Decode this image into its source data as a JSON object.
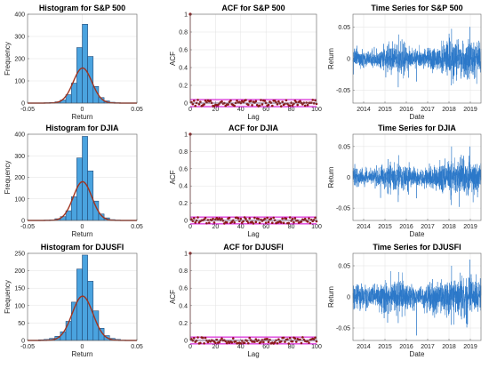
{
  "chart_data": [
    {
      "type": "bar",
      "title": "Histogram for S&P 500",
      "xlabel": "Return",
      "ylabel": "Frequency",
      "xlim": [
        -0.05,
        0.05
      ],
      "ylim": [
        0,
        400
      ],
      "xticks": [
        "-0.05",
        "0",
        "0.05"
      ],
      "yticks": [
        "0",
        "100",
        "200",
        "300",
        "400"
      ],
      "bin_edges": [
        -0.04,
        -0.035,
        -0.03,
        -0.025,
        -0.02,
        -0.015,
        -0.01,
        -0.005,
        0,
        0.005,
        0.01,
        0.015,
        0.02,
        0.025,
        0.03,
        0.035,
        0.04
      ],
      "counts": [
        1,
        2,
        3,
        6,
        14,
        38,
        90,
        250,
        355,
        210,
        75,
        25,
        10,
        4,
        2,
        1
      ],
      "fit": {
        "type": "normal",
        "mean": 0.0003,
        "sd": 0.0085
      }
    },
    {
      "type": "scatter",
      "title": "ACF for S&P 500",
      "xlabel": "Lag",
      "ylabel": "ACF",
      "xlim": [
        0,
        100
      ],
      "ylim": [
        0,
        1
      ],
      "xticks": [
        "0",
        "20",
        "40",
        "60",
        "80",
        "100"
      ],
      "yticks": [
        "0",
        "0.2",
        "0.4",
        "0.6",
        "0.8",
        "1"
      ],
      "band": 0.04,
      "lag0": 1
    },
    {
      "type": "line",
      "title": "Time Series for S&P 500",
      "xlabel": "Date",
      "ylabel": "Return",
      "xlim": [
        2013.5,
        2019.5
      ],
      "ylim": [
        -0.07,
        0.07
      ],
      "xticks": [
        "2014",
        "2015",
        "2016",
        "2017",
        "2018",
        "2019"
      ],
      "yticks": [
        "-0.05",
        "0",
        "0.05"
      ],
      "volatility_profile": [
        0.008,
        0.006,
        0.01,
        0.012,
        0.006,
        0.009,
        0.014,
        0.016,
        0.012
      ],
      "spikes": [
        [
          2015.62,
          -0.045
        ],
        [
          2015.64,
          0.038
        ],
        [
          2016.1,
          -0.03
        ],
        [
          2016.48,
          -0.036
        ],
        [
          2018.1,
          -0.042
        ],
        [
          2018.12,
          0.047
        ],
        [
          2018.9,
          -0.03
        ],
        [
          2018.98,
          0.05
        ]
      ]
    },
    {
      "type": "bar",
      "title": "Histogram for DJIA",
      "xlabel": "Return",
      "ylabel": "Frequency",
      "xlim": [
        -0.05,
        0.05
      ],
      "ylim": [
        0,
        400
      ],
      "xticks": [
        "-0.05",
        "0",
        "0.05"
      ],
      "yticks": [
        "0",
        "100",
        "200",
        "300",
        "400"
      ],
      "bin_edges": [
        -0.04,
        -0.035,
        -0.03,
        -0.025,
        -0.02,
        -0.015,
        -0.01,
        -0.005,
        0,
        0.005,
        0.01,
        0.015,
        0.02,
        0.025,
        0.03,
        0.035,
        0.04
      ],
      "counts": [
        1,
        2,
        3,
        8,
        18,
        45,
        110,
        290,
        390,
        230,
        90,
        30,
        12,
        4,
        2,
        1
      ],
      "fit": {
        "type": "normal",
        "mean": 0.0003,
        "sd": 0.0085
      }
    },
    {
      "type": "scatter",
      "title": "ACF for DJIA",
      "xlabel": "Lag",
      "ylabel": "ACF",
      "xlim": [
        0,
        100
      ],
      "ylim": [
        0,
        1
      ],
      "xticks": [
        "0",
        "20",
        "40",
        "60",
        "80",
        "100"
      ],
      "yticks": [
        "0",
        "0.2",
        "0.4",
        "0.6",
        "0.8",
        "1"
      ],
      "band": 0.04,
      "lag0": 1
    },
    {
      "type": "line",
      "title": "Time Series for DJIA",
      "xlabel": "Date",
      "ylabel": "Return",
      "xlim": [
        2013.5,
        2019.5
      ],
      "ylim": [
        -0.07,
        0.07
      ],
      "xticks": [
        "2014",
        "2015",
        "2016",
        "2017",
        "2018",
        "2019"
      ],
      "yticks": [
        "-0.05",
        "0",
        "0.05"
      ],
      "volatility_profile": [
        0.008,
        0.006,
        0.01,
        0.012,
        0.006,
        0.009,
        0.014,
        0.016,
        0.012
      ],
      "spikes": [
        [
          2015.62,
          -0.04
        ],
        [
          2015.64,
          0.036
        ],
        [
          2016.1,
          -0.028
        ],
        [
          2016.48,
          -0.034
        ],
        [
          2018.1,
          -0.045
        ],
        [
          2018.12,
          0.05
        ],
        [
          2018.9,
          -0.03
        ],
        [
          2018.98,
          0.05
        ]
      ]
    },
    {
      "type": "bar",
      "title": "Histogram for DJUSFI",
      "xlabel": "Return",
      "ylabel": "Frequency",
      "xlim": [
        -0.05,
        0.05
      ],
      "ylim": [
        0,
        250
      ],
      "xticks": [
        "-0.05",
        "0",
        "0.05"
      ],
      "yticks": [
        "0",
        "50",
        "100",
        "150",
        "200",
        "250"
      ],
      "bin_edges": [
        -0.04,
        -0.035,
        -0.03,
        -0.025,
        -0.02,
        -0.015,
        -0.01,
        -0.005,
        0,
        0.005,
        0.01,
        0.015,
        0.02,
        0.025,
        0.03,
        0.035,
        0.04
      ],
      "counts": [
        2,
        3,
        6,
        12,
        25,
        55,
        110,
        205,
        245,
        170,
        85,
        35,
        14,
        6,
        3,
        1
      ],
      "fit": {
        "type": "normal",
        "mean": 0.0003,
        "sd": 0.0095
      }
    },
    {
      "type": "scatter",
      "title": "ACF for DJUSFI",
      "xlabel": "Lag",
      "ylabel": "ACF",
      "xlim": [
        0,
        100
      ],
      "ylim": [
        0,
        1
      ],
      "xticks": [
        "0",
        "20",
        "40",
        "60",
        "80",
        "100"
      ],
      "yticks": [
        "0",
        "0.2",
        "0.4",
        "0.6",
        "0.8",
        "1"
      ],
      "band": 0.04,
      "lag0": 1
    },
    {
      "type": "line",
      "title": "Time Series for DJUSFI",
      "xlabel": "Date",
      "ylabel": "Return",
      "xlim": [
        2013.5,
        2019.5
      ],
      "ylim": [
        -0.07,
        0.07
      ],
      "xticks": [
        "2014",
        "2015",
        "2016",
        "2017",
        "2018",
        "2019"
      ],
      "yticks": [
        "-0.05",
        "0",
        "0.05"
      ],
      "volatility_profile": [
        0.01,
        0.008,
        0.012,
        0.014,
        0.008,
        0.01,
        0.015,
        0.017,
        0.013
      ],
      "spikes": [
        [
          2016.48,
          -0.062
        ],
        [
          2015.62,
          -0.042
        ],
        [
          2015.64,
          0.04
        ],
        [
          2018.1,
          -0.045
        ],
        [
          2018.12,
          0.05
        ],
        [
          2018.98,
          0.06
        ]
      ]
    }
  ],
  "colors": {
    "bar_fill": "#4aa3df",
    "bar_edge": "#1a3a66",
    "fit_curve": "#a0331e",
    "acf_marker": "#8b1a1a",
    "acf_band": "#d000d0",
    "acf_zero": "#3a3a8a",
    "series_line": "#2b78c9",
    "grid": "#e2e2e2",
    "axis": "#666666"
  }
}
